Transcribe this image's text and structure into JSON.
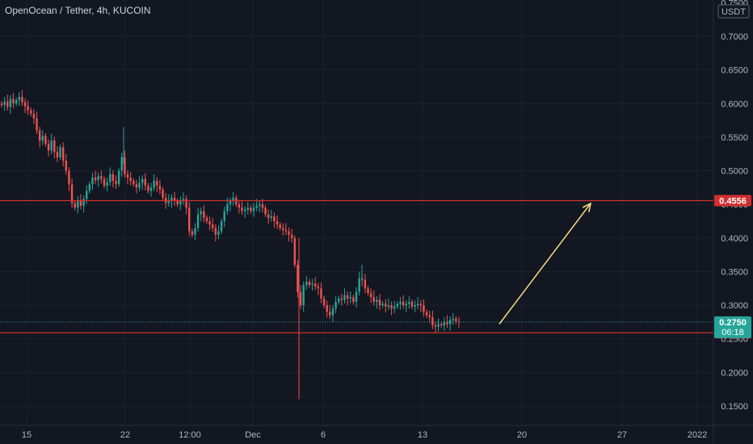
{
  "header": {
    "title": "OpenOcean / Tether, 4h, KUCOIN"
  },
  "price_axis": {
    "currency": "USDT"
  },
  "chart_data": {
    "type": "candlestick",
    "title": "OpenOcean / Tether, 4h, KUCOIN",
    "ylim": [
      0.12,
      0.76
    ],
    "y_ticks": [
      "0.7500",
      "0.7000",
      "0.6500",
      "0.6000",
      "0.5500",
      "0.5000",
      "0.4500",
      "0.4000",
      "0.3500",
      "0.3000",
      "0.2500",
      "0.2000",
      "0.1500"
    ],
    "x_ticks": [
      "15",
      "22",
      "12:00",
      "Dec",
      "6",
      "13",
      "20",
      "27",
      "2022"
    ],
    "current_price": {
      "label": "0.2750",
      "value": 0.275,
      "countdown": "06:18",
      "color": "#26a69a"
    },
    "horizontal_lines": [
      {
        "label": "0.4556",
        "value": 0.4556,
        "color": "#d32f2f"
      },
      {
        "label": "0.2590",
        "value": 0.259,
        "color": "#d32f2f"
      }
    ],
    "arrow": {
      "from": {
        "value": 0.272
      },
      "to": {
        "value": 0.455
      },
      "color": "#ffe082"
    },
    "series": [
      {
        "name": "OCEAN/USDT",
        "up_color": "#26a69a",
        "down_color": "#ef5350",
        "closes": [
          0.598,
          0.603,
          0.595,
          0.607,
          0.6,
          0.605,
          0.61,
          0.602,
          0.596,
          0.59,
          0.585,
          0.578,
          0.56,
          0.545,
          0.552,
          0.54,
          0.53,
          0.545,
          0.528,
          0.52,
          0.535,
          0.515,
          0.5,
          0.48,
          0.452,
          0.445,
          0.455,
          0.448,
          0.458,
          0.47,
          0.48,
          0.49,
          0.486,
          0.492,
          0.488,
          0.478,
          0.483,
          0.495,
          0.485,
          0.48,
          0.5,
          0.52,
          0.495,
          0.49,
          0.485,
          0.48,
          0.475,
          0.482,
          0.488,
          0.478,
          0.47,
          0.475,
          0.485,
          0.478,
          0.472,
          0.46,
          0.452,
          0.455,
          0.46,
          0.455,
          0.45,
          0.455,
          0.458,
          0.445,
          0.41,
          0.405,
          0.415,
          0.435,
          0.44,
          0.43,
          0.425,
          0.42,
          0.415,
          0.405,
          0.41,
          0.425,
          0.44,
          0.45,
          0.455,
          0.46,
          0.45,
          0.445,
          0.44,
          0.442,
          0.445,
          0.44,
          0.445,
          0.448,
          0.45,
          0.445,
          0.435,
          0.43,
          0.432,
          0.425,
          0.42,
          0.415,
          0.412,
          0.41,
          0.405,
          0.4,
          0.36,
          0.32,
          0.3,
          0.33,
          0.335,
          0.33,
          0.332,
          0.328,
          0.325,
          0.31,
          0.3,
          0.29,
          0.285,
          0.295,
          0.305,
          0.31,
          0.308,
          0.315,
          0.31,
          0.312,
          0.305,
          0.32,
          0.34,
          0.338,
          0.325,
          0.318,
          0.312,
          0.305,
          0.308,
          0.3,
          0.302,
          0.298,
          0.3,
          0.295,
          0.298,
          0.302,
          0.305,
          0.3,
          0.302,
          0.305,
          0.298,
          0.3,
          0.302,
          0.3,
          0.29,
          0.285,
          0.282,
          0.27,
          0.268,
          0.272,
          0.27,
          0.275,
          0.272,
          0.278,
          0.28,
          0.276,
          0.275
        ]
      }
    ]
  }
}
